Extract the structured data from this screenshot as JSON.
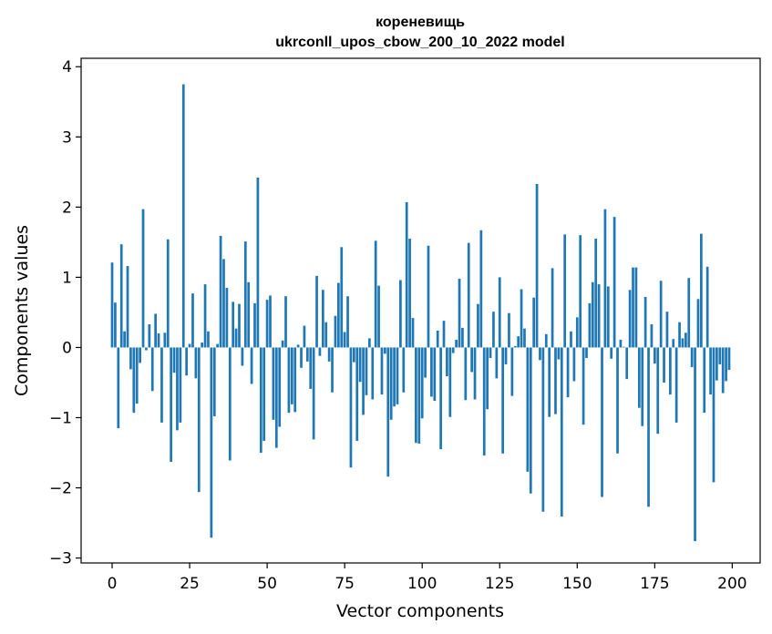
{
  "chart_data": {
    "type": "bar",
    "title": "кореневищь",
    "subtitle": "ukrconll_upos_cbow_200_10_2022 model",
    "xlabel": "Vector components",
    "ylabel": "Components values",
    "xlim": [
      -10,
      209
    ],
    "ylim": [
      -3.07,
      4.12
    ],
    "xticks": [
      0,
      25,
      50,
      75,
      100,
      125,
      150,
      175,
      200
    ],
    "yticks": [
      -3,
      -2,
      -1,
      0,
      1,
      2,
      3,
      4
    ],
    "ytick_labels": [
      "−3",
      "−2",
      "−1",
      "0",
      "1",
      "2",
      "3",
      "4"
    ],
    "bar_color": "#1f77b4",
    "grid": false,
    "legend": "none",
    "x": [
      0,
      1,
      2,
      3,
      4,
      5,
      6,
      7,
      8,
      9,
      10,
      11,
      12,
      13,
      14,
      15,
      16,
      17,
      18,
      19,
      20,
      21,
      22,
      23,
      24,
      25,
      26,
      27,
      28,
      29,
      30,
      31,
      32,
      33,
      34,
      35,
      36,
      37,
      38,
      39,
      40,
      41,
      42,
      43,
      44,
      45,
      46,
      47,
      48,
      49,
      50,
      51,
      52,
      53,
      54,
      55,
      56,
      57,
      58,
      59,
      60,
      61,
      62,
      63,
      64,
      65,
      66,
      67,
      68,
      69,
      70,
      71,
      72,
      73,
      74,
      75,
      76,
      77,
      78,
      79,
      80,
      81,
      82,
      83,
      84,
      85,
      86,
      87,
      88,
      89,
      90,
      91,
      92,
      93,
      94,
      95,
      96,
      97,
      98,
      99,
      100,
      101,
      102,
      103,
      104,
      105,
      106,
      107,
      108,
      109,
      110,
      111,
      112,
      113,
      114,
      115,
      116,
      117,
      118,
      119,
      120,
      121,
      122,
      123,
      124,
      125,
      126,
      127,
      128,
      129,
      130,
      131,
      132,
      133,
      134,
      135,
      136,
      137,
      138,
      139,
      140,
      141,
      142,
      143,
      144,
      145,
      146,
      147,
      148,
      149,
      150,
      151,
      152,
      153,
      154,
      155,
      156,
      157,
      158,
      159,
      160,
      161,
      162,
      163,
      164,
      165,
      166,
      167,
      168,
      169,
      170,
      171,
      172,
      173,
      174,
      175,
      176,
      177,
      178,
      179,
      180,
      181,
      182,
      183,
      184,
      185,
      186,
      187,
      188,
      189,
      190,
      191,
      192,
      193,
      194,
      195,
      196,
      197,
      198,
      199
    ],
    "values": [
      1.21,
      0.64,
      -1.15,
      1.47,
      0.23,
      1.16,
      -0.31,
      -0.93,
      -0.8,
      -0.22,
      1.97,
      -0.04,
      0.33,
      -0.62,
      0.48,
      0.2,
      -1.07,
      0.21,
      1.54,
      -1.63,
      -0.36,
      -1.18,
      -1.07,
      3.75,
      -0.4,
      0.05,
      0.77,
      -0.44,
      -2.06,
      0.07,
      0.9,
      0.23,
      -2.71,
      -0.98,
      0.05,
      1.59,
      1.26,
      0.85,
      -1.61,
      0.65,
      0.27,
      0.62,
      -0.26,
      1.51,
      0.93,
      -0.52,
      0.63,
      2.42,
      -1.5,
      -1.33,
      0.68,
      0.74,
      -1.03,
      -1.43,
      -1.13,
      0.1,
      0.73,
      -0.93,
      -0.81,
      -0.92,
      0.04,
      -0.29,
      0.31,
      -0.2,
      -0.59,
      -1.31,
      1.02,
      -0.12,
      0.82,
      0.36,
      -0.2,
      -0.64,
      0.45,
      0.92,
      1.43,
      0.22,
      0.73,
      -1.71,
      -0.21,
      -1.33,
      -0.49,
      -0.96,
      -0.68,
      0.13,
      -0.74,
      1.52,
      0.88,
      -0.67,
      -0.09,
      -1.84,
      -1.03,
      -0.84,
      -0.81,
      0.96,
      -0.64,
      2.07,
      1.55,
      0.42,
      -1.36,
      -1.37,
      -1.01,
      -0.43,
      1.45,
      -0.7,
      -0.76,
      0.24,
      -1.45,
      0.38,
      -0.41,
      -0.99,
      -0.08,
      0.11,
      0.98,
      0.28,
      -0.75,
      1.49,
      -0.35,
      -0.74,
      0.62,
      1.67,
      -1.54,
      -0.88,
      -0.15,
      0.51,
      -0.44,
      1.0,
      -1.51,
      -0.24,
      0.49,
      -0.69,
      0.02,
      0.16,
      0.83,
      0.27,
      -1.77,
      -2.08,
      0.71,
      2.33,
      -0.18,
      -2.34,
      0.19,
      -0.99,
      1.13,
      -0.95,
      -0.17,
      -2.41,
      1.61,
      -0.71,
      0.23,
      -0.48,
      0.43,
      1.6,
      -1.1,
      -0.15,
      0.63,
      0.93,
      1.55,
      0.9,
      -2.13,
      1.97,
      0.87,
      -0.16,
      1.86,
      -1.51,
      0.11,
      0.01,
      -0.45,
      0.82,
      1.14,
      1.14,
      -0.86,
      -1.12,
      0.72,
      -2.27,
      0.33,
      -0.23,
      -1.23,
      0.95,
      -0.5,
      0.51,
      -0.67,
      0.12,
      -1.07,
      0.36,
      0.13,
      0.21,
      0.99,
      -0.28,
      -2.76,
      0.69,
      1.62,
      -0.93,
      1.15,
      -0.67,
      -1.92,
      -0.47,
      -0.24,
      -0.65,
      -0.48,
      -0.32
    ]
  }
}
